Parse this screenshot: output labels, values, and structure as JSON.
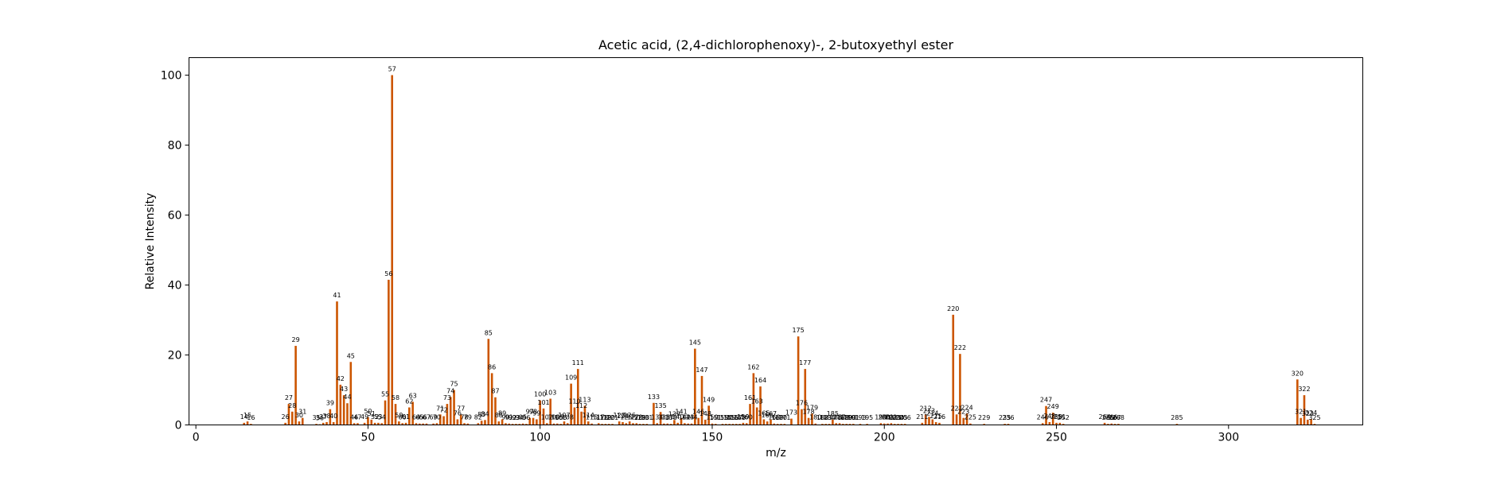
{
  "chart_data": {
    "type": "bar",
    "title": "Acetic acid, (2,4-dichlorophenoxy)-, 2-butoxyethyl ester",
    "xlabel": "m/z",
    "ylabel": "Relative Intensity",
    "xlim": [
      -2,
      339
    ],
    "ylim": [
      0,
      105
    ],
    "xticks": [
      0,
      50,
      100,
      150,
      200,
      250,
      300
    ],
    "yticks": [
      0,
      20,
      40,
      60,
      80,
      100
    ],
    "grid": false,
    "bar_color": "#cc5500",
    "peaks": [
      {
        "mz": 14,
        "i": 0.6,
        "label": "14"
      },
      {
        "mz": 15,
        "i": 1.0,
        "label": "15"
      },
      {
        "mz": 16,
        "i": 0.3,
        "label": "16"
      },
      {
        "mz": 26,
        "i": 0.6,
        "label": "26"
      },
      {
        "mz": 27,
        "i": 6.0,
        "label": "27"
      },
      {
        "mz": 28,
        "i": 3.8,
        "label": "28"
      },
      {
        "mz": 29,
        "i": 22.6,
        "label": "29"
      },
      {
        "mz": 30,
        "i": 1.0,
        "label": "30"
      },
      {
        "mz": 31,
        "i": 2.0,
        "label": "31"
      },
      {
        "mz": 35,
        "i": 0.3,
        "label": "35"
      },
      {
        "mz": 36,
        "i": 0.2,
        "label": "36"
      },
      {
        "mz": 37,
        "i": 0.6,
        "label": "37"
      },
      {
        "mz": 38,
        "i": 0.8,
        "label": "38"
      },
      {
        "mz": 39,
        "i": 4.5,
        "label": "39"
      },
      {
        "mz": 40,
        "i": 0.8,
        "label": "40"
      },
      {
        "mz": 41,
        "i": 35.3,
        "label": "41"
      },
      {
        "mz": 42,
        "i": 11.5,
        "label": "42"
      },
      {
        "mz": 43,
        "i": 8.5,
        "label": "43"
      },
      {
        "mz": 44,
        "i": 6.2,
        "label": "44"
      },
      {
        "mz": 45,
        "i": 18.0,
        "label": "45"
      },
      {
        "mz": 46,
        "i": 0.5,
        "label": "46"
      },
      {
        "mz": 47,
        "i": 0.5,
        "label": "47"
      },
      {
        "mz": 49,
        "i": 0.6,
        "label": "49"
      },
      {
        "mz": 50,
        "i": 2.2,
        "label": "50"
      },
      {
        "mz": 51,
        "i": 1.5,
        "label": "51"
      },
      {
        "mz": 52,
        "i": 0.6,
        "label": "52"
      },
      {
        "mz": 53,
        "i": 0.6,
        "label": "53"
      },
      {
        "mz": 54,
        "i": 0.5,
        "label": "54"
      },
      {
        "mz": 55,
        "i": 7.0,
        "label": "55"
      },
      {
        "mz": 56,
        "i": 41.5,
        "label": "56"
      },
      {
        "mz": 57,
        "i": 100.0,
        "label": "57"
      },
      {
        "mz": 58,
        "i": 6.0,
        "label": "58"
      },
      {
        "mz": 59,
        "i": 1.0,
        "label": "59"
      },
      {
        "mz": 60,
        "i": 0.5,
        "label": "60"
      },
      {
        "mz": 61,
        "i": 0.6,
        "label": "61"
      },
      {
        "mz": 62,
        "i": 5.0,
        "label": "62"
      },
      {
        "mz": 63,
        "i": 6.6,
        "label": "63"
      },
      {
        "mz": 64,
        "i": 0.5,
        "label": "64"
      },
      {
        "mz": 65,
        "i": 0.4,
        "label": "65"
      },
      {
        "mz": 66,
        "i": 0.4,
        "label": "66"
      },
      {
        "mz": 67,
        "i": 0.4,
        "label": "67"
      },
      {
        "mz": 69,
        "i": 0.4,
        "label": "69"
      },
      {
        "mz": 70,
        "i": 0.5,
        "label": "70"
      },
      {
        "mz": 71,
        "i": 3.0,
        "label": "71"
      },
      {
        "mz": 72,
        "i": 2.5,
        "label": "72"
      },
      {
        "mz": 73,
        "i": 6.0,
        "label": "73"
      },
      {
        "mz": 74,
        "i": 8.0,
        "label": "74"
      },
      {
        "mz": 75,
        "i": 10.0,
        "label": "75"
      },
      {
        "mz": 76,
        "i": 1.6,
        "label": "76"
      },
      {
        "mz": 77,
        "i": 3.0,
        "label": "77"
      },
      {
        "mz": 78,
        "i": 0.5,
        "label": "78"
      },
      {
        "mz": 79,
        "i": 0.4,
        "label": "79"
      },
      {
        "mz": 82,
        "i": 0.5,
        "label": "82"
      },
      {
        "mz": 83,
        "i": 1.2,
        "label": "83"
      },
      {
        "mz": 84,
        "i": 1.4,
        "label": "84"
      },
      {
        "mz": 85,
        "i": 24.6,
        "label": "85"
      },
      {
        "mz": 86,
        "i": 14.8,
        "label": "86"
      },
      {
        "mz": 87,
        "i": 7.9,
        "label": "87"
      },
      {
        "mz": 88,
        "i": 1.0,
        "label": "88"
      },
      {
        "mz": 89,
        "i": 1.6,
        "label": "89"
      },
      {
        "mz": 90,
        "i": 0.5,
        "label": "90"
      },
      {
        "mz": 91,
        "i": 0.4,
        "label": "91"
      },
      {
        "mz": 92,
        "i": 0.3,
        "label": "92"
      },
      {
        "mz": 93,
        "i": 0.3,
        "label": "93"
      },
      {
        "mz": 94,
        "i": 0.3,
        "label": "94"
      },
      {
        "mz": 95,
        "i": 0.4,
        "label": "95"
      },
      {
        "mz": 96,
        "i": 0.3,
        "label": "96"
      },
      {
        "mz": 97,
        "i": 2.0,
        "label": "97"
      },
      {
        "mz": 98,
        "i": 2.0,
        "label": "98"
      },
      {
        "mz": 99,
        "i": 1.6,
        "label": "99"
      },
      {
        "mz": 100,
        "i": 7.0,
        "label": "100"
      },
      {
        "mz": 101,
        "i": 4.7,
        "label": "101"
      },
      {
        "mz": 102,
        "i": 0.5,
        "label": "102"
      },
      {
        "mz": 103,
        "i": 7.5,
        "label": "103"
      },
      {
        "mz": 104,
        "i": 0.4,
        "label": "104"
      },
      {
        "mz": 105,
        "i": 0.4,
        "label": "105"
      },
      {
        "mz": 106,
        "i": 0.3,
        "label": "106"
      },
      {
        "mz": 107,
        "i": 1.0,
        "label": "107"
      },
      {
        "mz": 108,
        "i": 0.5,
        "label": "108"
      },
      {
        "mz": 109,
        "i": 11.8,
        "label": "109"
      },
      {
        "mz": 110,
        "i": 5.0,
        "label": "110"
      },
      {
        "mz": 111,
        "i": 16.0,
        "label": "111"
      },
      {
        "mz": 112,
        "i": 3.8,
        "label": "112"
      },
      {
        "mz": 113,
        "i": 5.5,
        "label": "113"
      },
      {
        "mz": 114,
        "i": 1.0,
        "label": "114"
      },
      {
        "mz": 115,
        "i": 0.4,
        "label": "115"
      },
      {
        "mz": 117,
        "i": 0.5,
        "label": "117"
      },
      {
        "mz": 118,
        "i": 0.3,
        "label": "118"
      },
      {
        "mz": 119,
        "i": 0.3,
        "label": "119"
      },
      {
        "mz": 120,
        "i": 0.3,
        "label": "120"
      },
      {
        "mz": 121,
        "i": 0.3,
        "label": "121"
      },
      {
        "mz": 123,
        "i": 1.0,
        "label": "123"
      },
      {
        "mz": 124,
        "i": 0.8,
        "label": "124"
      },
      {
        "mz": 125,
        "i": 0.5,
        "label": "125"
      },
      {
        "mz": 126,
        "i": 1.0,
        "label": "126"
      },
      {
        "mz": 127,
        "i": 0.5,
        "label": "127"
      },
      {
        "mz": 128,
        "i": 0.5,
        "label": "128"
      },
      {
        "mz": 129,
        "i": 0.3,
        "label": "129"
      },
      {
        "mz": 130,
        "i": 0.3,
        "label": "130"
      },
      {
        "mz": 131,
        "i": 0.3,
        "label": "131"
      },
      {
        "mz": 133,
        "i": 6.3,
        "label": "133"
      },
      {
        "mz": 134,
        "i": 0.5,
        "label": "134"
      },
      {
        "mz": 135,
        "i": 3.7,
        "label": "135"
      },
      {
        "mz": 136,
        "i": 0.4,
        "label": "136"
      },
      {
        "mz": 137,
        "i": 0.4,
        "label": "137"
      },
      {
        "mz": 138,
        "i": 0.3,
        "label": "138"
      },
      {
        "mz": 139,
        "i": 1.4,
        "label": "139"
      },
      {
        "mz": 140,
        "i": 0.6,
        "label": "140"
      },
      {
        "mz": 141,
        "i": 2.0,
        "label": "141"
      },
      {
        "mz": 142,
        "i": 0.5,
        "label": "142"
      },
      {
        "mz": 143,
        "i": 0.4,
        "label": "143"
      },
      {
        "mz": 144,
        "i": 0.4,
        "label": "144"
      },
      {
        "mz": 145,
        "i": 21.8,
        "label": "145"
      },
      {
        "mz": 146,
        "i": 2.0,
        "label": "146"
      },
      {
        "mz": 147,
        "i": 14.0,
        "label": "147"
      },
      {
        "mz": 148,
        "i": 1.5,
        "label": "148"
      },
      {
        "mz": 149,
        "i": 5.5,
        "label": "149"
      },
      {
        "mz": 150,
        "i": 0.4,
        "label": "150"
      },
      {
        "mz": 151,
        "i": 0.3,
        "label": "151"
      },
      {
        "mz": 153,
        "i": 0.3,
        "label": "153"
      },
      {
        "mz": 154,
        "i": 0.3,
        "label": "154"
      },
      {
        "mz": 155,
        "i": 0.3,
        "label": "155"
      },
      {
        "mz": 156,
        "i": 0.3,
        "label": "156"
      },
      {
        "mz": 157,
        "i": 0.3,
        "label": "157"
      },
      {
        "mz": 158,
        "i": 0.3,
        "label": "158"
      },
      {
        "mz": 159,
        "i": 0.6,
        "label": "159"
      },
      {
        "mz": 160,
        "i": 0.5,
        "label": "160"
      },
      {
        "mz": 161,
        "i": 6.0,
        "label": "161"
      },
      {
        "mz": 162,
        "i": 14.8,
        "label": "162"
      },
      {
        "mz": 163,
        "i": 5.0,
        "label": "163"
      },
      {
        "mz": 164,
        "i": 11.0,
        "label": "164"
      },
      {
        "mz": 165,
        "i": 1.6,
        "label": "165"
      },
      {
        "mz": 166,
        "i": 1.0,
        "label": "166"
      },
      {
        "mz": 167,
        "i": 1.5,
        "label": "167"
      },
      {
        "mz": 168,
        "i": 0.4,
        "label": "168"
      },
      {
        "mz": 169,
        "i": 0.3,
        "label": "169"
      },
      {
        "mz": 170,
        "i": 0.3,
        "label": "170"
      },
      {
        "mz": 171,
        "i": 0.3,
        "label": "171"
      },
      {
        "mz": 173,
        "i": 1.8,
        "label": "173"
      },
      {
        "mz": 175,
        "i": 25.3,
        "label": "175"
      },
      {
        "mz": 176,
        "i": 4.5,
        "label": "176"
      },
      {
        "mz": 177,
        "i": 16.0,
        "label": "177"
      },
      {
        "mz": 178,
        "i": 2.0,
        "label": "178"
      },
      {
        "mz": 179,
        "i": 3.2,
        "label": "179"
      },
      {
        "mz": 180,
        "i": 0.4,
        "label": "180"
      },
      {
        "mz": 182,
        "i": 0.3,
        "label": "182"
      },
      {
        "mz": 183,
        "i": 0.3,
        "label": "183"
      },
      {
        "mz": 184,
        "i": 0.3,
        "label": "184"
      },
      {
        "mz": 185,
        "i": 1.5,
        "label": "185"
      },
      {
        "mz": 186,
        "i": 0.5,
        "label": "186"
      },
      {
        "mz": 187,
        "i": 0.5,
        "label": "187"
      },
      {
        "mz": 188,
        "i": 0.3,
        "label": "188"
      },
      {
        "mz": 189,
        "i": 0.3,
        "label": "189"
      },
      {
        "mz": 190,
        "i": 0.3,
        "label": "190"
      },
      {
        "mz": 191,
        "i": 0.3,
        "label": "191"
      },
      {
        "mz": 193,
        "i": 0.3,
        "label": "193"
      },
      {
        "mz": 195,
        "i": 0.3,
        "label": "195"
      },
      {
        "mz": 199,
        "i": 0.5,
        "label": "199"
      },
      {
        "mz": 200,
        "i": 0.4,
        "label": "200"
      },
      {
        "mz": 201,
        "i": 0.4,
        "label": "201"
      },
      {
        "mz": 202,
        "i": 0.5,
        "label": "202"
      },
      {
        "mz": 203,
        "i": 0.3,
        "label": "203"
      },
      {
        "mz": 204,
        "i": 0.3,
        "label": "204"
      },
      {
        "mz": 205,
        "i": 0.3,
        "label": "205"
      },
      {
        "mz": 206,
        "i": 0.3,
        "label": "206"
      },
      {
        "mz": 211,
        "i": 0.6,
        "label": "211"
      },
      {
        "mz": 212,
        "i": 3.0,
        "label": "212"
      },
      {
        "mz": 213,
        "i": 2.3,
        "label": "213"
      },
      {
        "mz": 214,
        "i": 1.6,
        "label": "214"
      },
      {
        "mz": 215,
        "i": 0.8,
        "label": "215"
      },
      {
        "mz": 216,
        "i": 0.6,
        "label": "216"
      },
      {
        "mz": 220,
        "i": 31.5,
        "label": "220"
      },
      {
        "mz": 221,
        "i": 3.0,
        "label": "221"
      },
      {
        "mz": 222,
        "i": 20.3,
        "label": "222"
      },
      {
        "mz": 223,
        "i": 2.0,
        "label": "223"
      },
      {
        "mz": 224,
        "i": 3.2,
        "label": "224"
      },
      {
        "mz": 225,
        "i": 0.4,
        "label": "225"
      },
      {
        "mz": 229,
        "i": 0.3,
        "label": "229"
      },
      {
        "mz": 235,
        "i": 0.3,
        "label": "235"
      },
      {
        "mz": 236,
        "i": 0.3,
        "label": "236"
      },
      {
        "mz": 246,
        "i": 0.5,
        "label": "246"
      },
      {
        "mz": 247,
        "i": 5.4,
        "label": "247"
      },
      {
        "mz": 248,
        "i": 0.8,
        "label": "248"
      },
      {
        "mz": 249,
        "i": 3.5,
        "label": "249"
      },
      {
        "mz": 250,
        "i": 0.6,
        "label": "250"
      },
      {
        "mz": 251,
        "i": 0.6,
        "label": "251"
      },
      {
        "mz": 252,
        "i": 0.3,
        "label": "252"
      },
      {
        "mz": 264,
        "i": 0.6,
        "label": "264"
      },
      {
        "mz": 265,
        "i": 0.3,
        "label": "265"
      },
      {
        "mz": 266,
        "i": 0.4,
        "label": "266"
      },
      {
        "mz": 267,
        "i": 0.3,
        "label": "267"
      },
      {
        "mz": 268,
        "i": 0.3,
        "label": "268"
      },
      {
        "mz": 285,
        "i": 0.3,
        "label": "285"
      },
      {
        "mz": 320,
        "i": 13.0,
        "label": "320"
      },
      {
        "mz": 321,
        "i": 2.0,
        "label": "321"
      },
      {
        "mz": 322,
        "i": 8.5,
        "label": "322"
      },
      {
        "mz": 323,
        "i": 1.5,
        "label": "323"
      },
      {
        "mz": 324,
        "i": 1.7,
        "label": "324"
      },
      {
        "mz": 325,
        "i": 0.3,
        "label": "325"
      }
    ]
  }
}
